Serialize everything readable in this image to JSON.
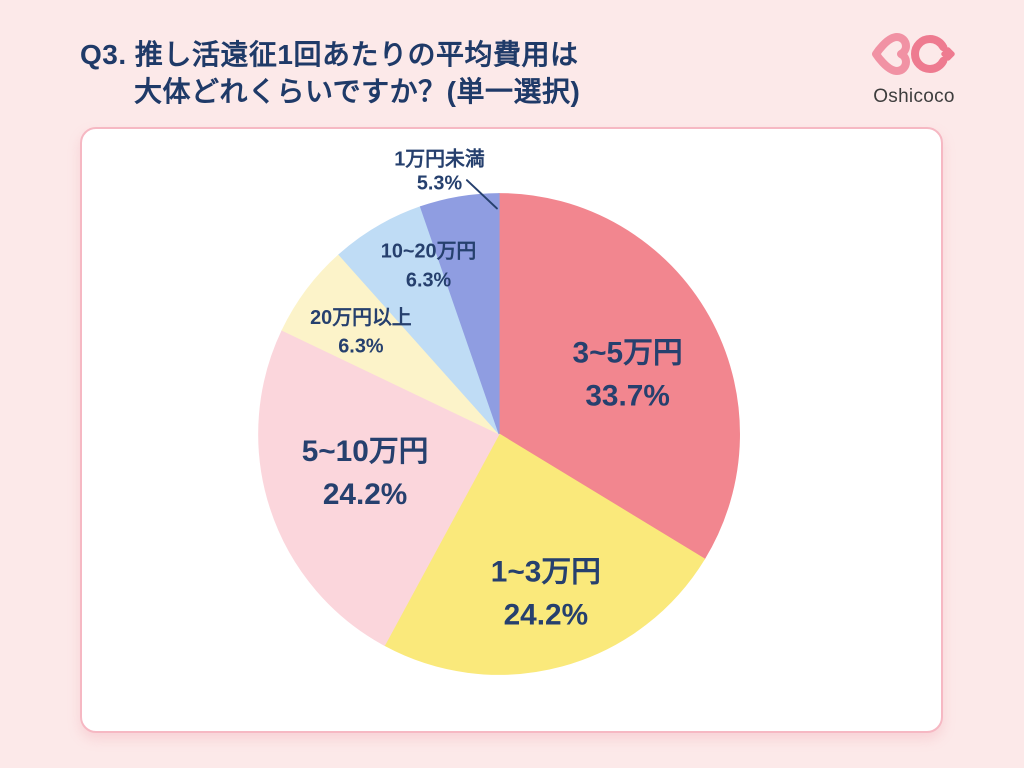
{
  "page": {
    "background_color": "#FCE9E9",
    "navy_text_color": "#1F3A68"
  },
  "header": {
    "title_line1": "Q3. 推し活遠征1回あたりの平均費用は",
    "title_line2": "大体どれくらいですか？(単一選択)",
    "logo_text": "Oshicoco",
    "logo_pink_left": "#F192A4",
    "logo_pink_right": "#EE7B90"
  },
  "card": {
    "background": "#FFFFFF",
    "border_color": "#F6B8C3"
  },
  "chart_data": {
    "type": "pie",
    "title": "Q3. 推し活遠征1回あたりの平均費用は大体どれくらいですか？(単一選択)",
    "unit": "%",
    "direction": "clockwise",
    "start_angle_deg": 0,
    "label_color": "#26406E",
    "legend": "none",
    "segments": [
      {
        "label": "3~5万円",
        "value": 33.7,
        "display": "33.7%",
        "color": "#F2868F",
        "label_hint": {
          "placement": "inside",
          "angle_deg": 65,
          "r_frac": 0.59,
          "size": "large"
        }
      },
      {
        "label": "1~3万円",
        "value": 24.2,
        "display": "24.2%",
        "color": "#FAE97B",
        "label_hint": {
          "placement": "inside",
          "angle_deg": 163.6,
          "r_frac": 0.69,
          "size": "large"
        }
      },
      {
        "label": "5~10万円",
        "value": 24.2,
        "display": "24.2%",
        "color": "#FBD6DC",
        "label_hint": {
          "placement": "inside",
          "angle_deg": 254,
          "r_frac": 0.58,
          "size": "large"
        }
      },
      {
        "label": "20万円以上",
        "value": 6.3,
        "display": "6.3%",
        "color": "#FCF3C9",
        "label_hint": {
          "placement": "inside",
          "angle_deg": 306.5,
          "r_frac": 0.715,
          "size": "small"
        }
      },
      {
        "label": "10~20万円",
        "value": 6.3,
        "display": "6.3%",
        "color": "#BFDCF5",
        "label_hint": {
          "placement": "inside",
          "angle_deg": 337.3,
          "r_frac": 0.76,
          "size": "small"
        }
      },
      {
        "label": "1万円未満",
        "value": 5.3,
        "display": "5.3%",
        "color": "#8F9DE1",
        "label_hint": {
          "placement": "outside",
          "x_frac": 0.416,
          "y_frac": 0.051,
          "size": "small",
          "leader": {
            "x1_frac": 0.448,
            "y1_frac": 0.085,
            "x2_frac": 0.483,
            "y2_frac": 0.132
          }
        }
      }
    ]
  }
}
